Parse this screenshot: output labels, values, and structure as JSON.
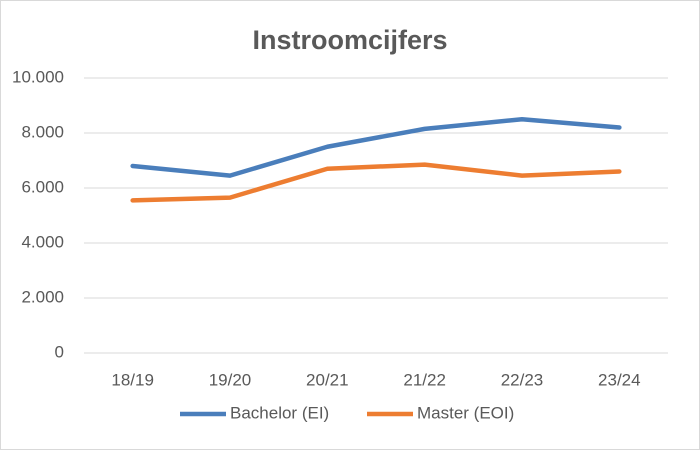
{
  "chart_data": {
    "type": "line",
    "title": "Instroomcijfers",
    "categories": [
      "18/19",
      "19/20",
      "20/21",
      "21/22",
      "22/23",
      "23/24"
    ],
    "series": [
      {
        "name": "Bachelor (EI)",
        "color": "#4a7ebb",
        "values": [
          6800,
          6450,
          7500,
          8150,
          8500,
          8200
        ]
      },
      {
        "name": "Master (EOI)",
        "color": "#ed7d31",
        "values": [
          5550,
          5650,
          6700,
          6850,
          6450,
          6600
        ]
      }
    ],
    "ylim": [
      0,
      10000
    ],
    "yticks": [
      0,
      {
        "value": 2000,
        "label": "2.000"
      },
      {
        "value": 4000,
        "label": "4.000"
      },
      {
        "value": 6000,
        "label": "6.000"
      },
      {
        "value": 8000,
        "label": "8.000"
      },
      {
        "value": 10000,
        "label": "10.000"
      }
    ],
    "grid": true,
    "legend": "bottom"
  }
}
